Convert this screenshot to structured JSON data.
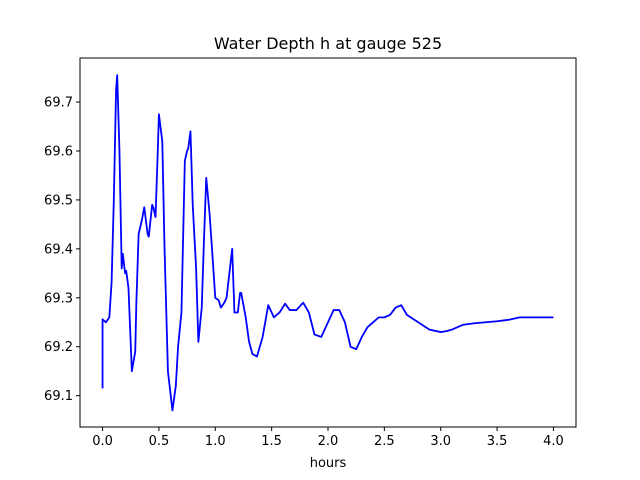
{
  "chart_data": {
    "type": "line",
    "title": "Water Depth h at gauge 525",
    "xlabel": "hours",
    "ylabel": "",
    "xlim": [
      -0.2,
      4.2
    ],
    "ylim": [
      69.036,
      69.79
    ],
    "xticks": [
      0.0,
      0.5,
      1.0,
      1.5,
      2.0,
      2.5,
      3.0,
      3.5,
      4.0
    ],
    "xtick_labels": [
      "0.0",
      "0.5",
      "1.0",
      "1.5",
      "2.0",
      "2.5",
      "3.0",
      "3.5",
      "4.0"
    ],
    "yticks": [
      69.1,
      69.2,
      69.3,
      69.4,
      69.5,
      69.6,
      69.7
    ],
    "ytick_labels": [
      "69.1",
      "69.2",
      "69.3",
      "69.4",
      "69.5",
      "69.6",
      "69.7"
    ],
    "grid": false,
    "series": [
      {
        "color": "#0000ff",
        "x": [
          0.0,
          0.0,
          0.03,
          0.06,
          0.08,
          0.1,
          0.12,
          0.13,
          0.15,
          0.17,
          0.18,
          0.2,
          0.21,
          0.23,
          0.26,
          0.29,
          0.3,
          0.32,
          0.35,
          0.37,
          0.4,
          0.41,
          0.44,
          0.45,
          0.47,
          0.49,
          0.5,
          0.53,
          0.55,
          0.58,
          0.62,
          0.65,
          0.67,
          0.7,
          0.73,
          0.75,
          0.76,
          0.78,
          0.8,
          0.83,
          0.85,
          0.88,
          0.9,
          0.92,
          0.95,
          0.98,
          1.0,
          1.03,
          1.05,
          1.08,
          1.1,
          1.12,
          1.15,
          1.17,
          1.2,
          1.22,
          1.23,
          1.27,
          1.3,
          1.33,
          1.37,
          1.42,
          1.47,
          1.52,
          1.57,
          1.62,
          1.66,
          1.72,
          1.78,
          1.83,
          1.88,
          1.94,
          2.0,
          2.05,
          2.1,
          2.15,
          2.2,
          2.25,
          2.3,
          2.35,
          2.4,
          2.45,
          2.5,
          2.55,
          2.6,
          2.65,
          2.7,
          2.8,
          2.9,
          3.0,
          3.05,
          3.1,
          3.2,
          3.3,
          3.4,
          3.5,
          3.6,
          3.7,
          3.8,
          3.9,
          4.0
        ],
        "y": [
          69.115,
          69.256,
          69.25,
          69.26,
          69.33,
          69.5,
          69.725,
          69.755,
          69.6,
          69.36,
          69.39,
          69.35,
          69.355,
          69.32,
          69.15,
          69.19,
          69.29,
          69.43,
          69.46,
          69.485,
          69.43,
          69.425,
          69.49,
          69.485,
          69.465,
          69.6,
          69.675,
          69.62,
          69.4,
          69.15,
          69.07,
          69.12,
          69.2,
          69.27,
          69.58,
          69.6,
          69.605,
          69.64,
          69.49,
          69.36,
          69.21,
          69.28,
          69.42,
          69.545,
          69.47,
          69.37,
          69.3,
          69.295,
          69.28,
          69.29,
          69.3,
          69.34,
          69.4,
          69.27,
          69.27,
          69.31,
          69.31,
          69.26,
          69.21,
          69.185,
          69.18,
          69.22,
          69.285,
          69.26,
          69.27,
          69.288,
          69.275,
          69.275,
          69.29,
          69.27,
          69.225,
          69.22,
          69.25,
          69.275,
          69.275,
          69.25,
          69.2,
          69.195,
          69.22,
          69.24,
          69.25,
          69.26,
          69.26,
          69.265,
          69.28,
          69.285,
          69.265,
          69.25,
          69.235,
          69.23,
          69.232,
          69.235,
          69.245,
          69.248,
          69.25,
          69.252,
          69.255,
          69.26,
          69.26,
          69.26,
          69.26
        ]
      }
    ]
  }
}
